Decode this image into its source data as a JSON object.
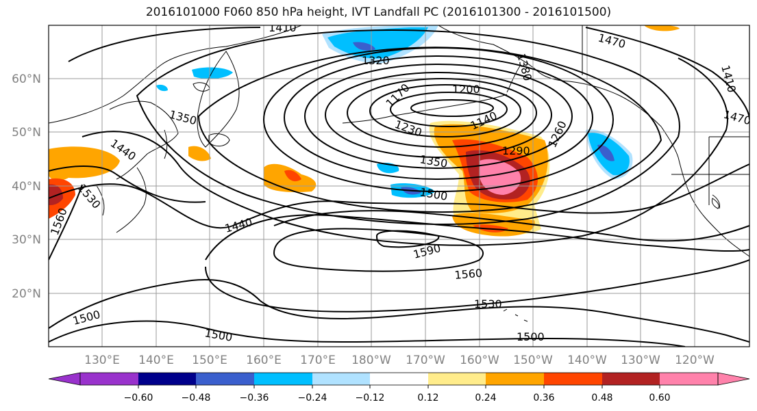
{
  "title": "2016101000 F060 850 hPa height, IVT Landfall PC (2016101300 - 2016101500)",
  "map": {
    "lat_labels": [
      "60°N",
      "50°N",
      "40°N",
      "30°N",
      "20°N"
    ],
    "lat_values": [
      60,
      50,
      40,
      30,
      20
    ],
    "lon_labels": [
      "130°E",
      "140°E",
      "150°E",
      "160°E",
      "170°E",
      "180°W",
      "170°W",
      "160°W",
      "150°W",
      "140°W",
      "130°W",
      "120°W"
    ],
    "lon_values": [
      130,
      140,
      150,
      160,
      170,
      180,
      190,
      200,
      210,
      220,
      230,
      240
    ],
    "extent": {
      "lon_min": 120,
      "lon_max": 250,
      "lat_min": 10,
      "lat_max": 70
    },
    "contour_labels": [
      "1410",
      "1320",
      "1170",
      "1200",
      "1380",
      "1470",
      "1410",
      "1470",
      "1350",
      "1440",
      "1230",
      "1140",
      "1290",
      "1260",
      "1350",
      "1530",
      "1560",
      "1500",
      "1440",
      "1590",
      "1560",
      "1530",
      "1500",
      "1500",
      "1500"
    ]
  },
  "colorbar": {
    "ticks": [
      "−0.60",
      "−0.48",
      "−0.36",
      "−0.24",
      "−0.12",
      "0.12",
      "0.24",
      "0.36",
      "0.48",
      "0.60"
    ],
    "colors": [
      "#9932cc",
      "#00008b",
      "#3a5fcd",
      "#00bfff",
      "#b0e2ff",
      "#ffffff",
      "#ffec8b",
      "#ffa500",
      "#ff4500",
      "#b22222",
      "#ff82ab"
    ]
  }
}
